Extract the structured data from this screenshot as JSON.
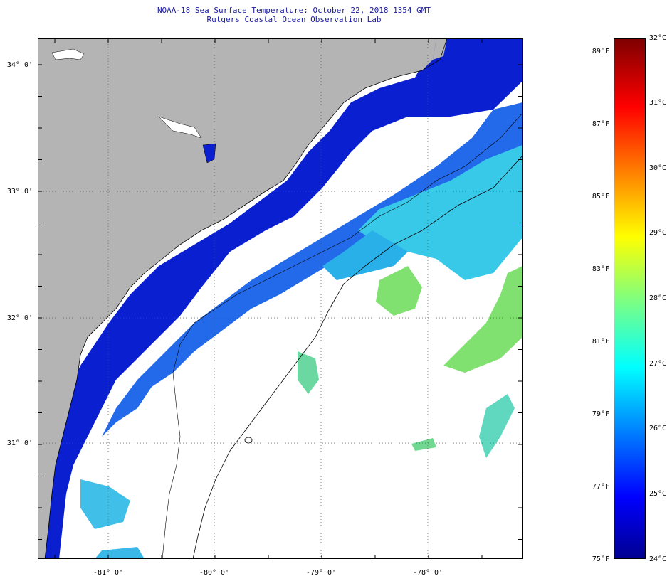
{
  "title": {
    "line1": "NOAA-18 Sea Surface Temperature:  October 22, 2018 1354 GMT",
    "line2": "Rutgers Coastal Ocean Observation Lab"
  },
  "map": {
    "lat_labels": [
      "34° 0'",
      "33° 0'",
      "32° 0'",
      "31° 0'"
    ],
    "lon_labels": [
      "-81° 0'",
      "-80° 0'",
      "-79° 0'",
      "-78° 0'"
    ],
    "land_color": "#b4b4b4",
    "cloud_color": "#ffffff"
  },
  "colorbar": {
    "fahrenheit_labels": [
      "89°F",
      "87°F",
      "85°F",
      "83°F",
      "81°F",
      "79°F",
      "77°F",
      "75°F"
    ],
    "celsius_labels": [
      "32°C",
      "31°C",
      "30°C",
      "29°C",
      "28°C",
      "27°C",
      "26°C",
      "25°C",
      "24°C"
    ],
    "min_c": 24,
    "max_c": 32
  }
}
